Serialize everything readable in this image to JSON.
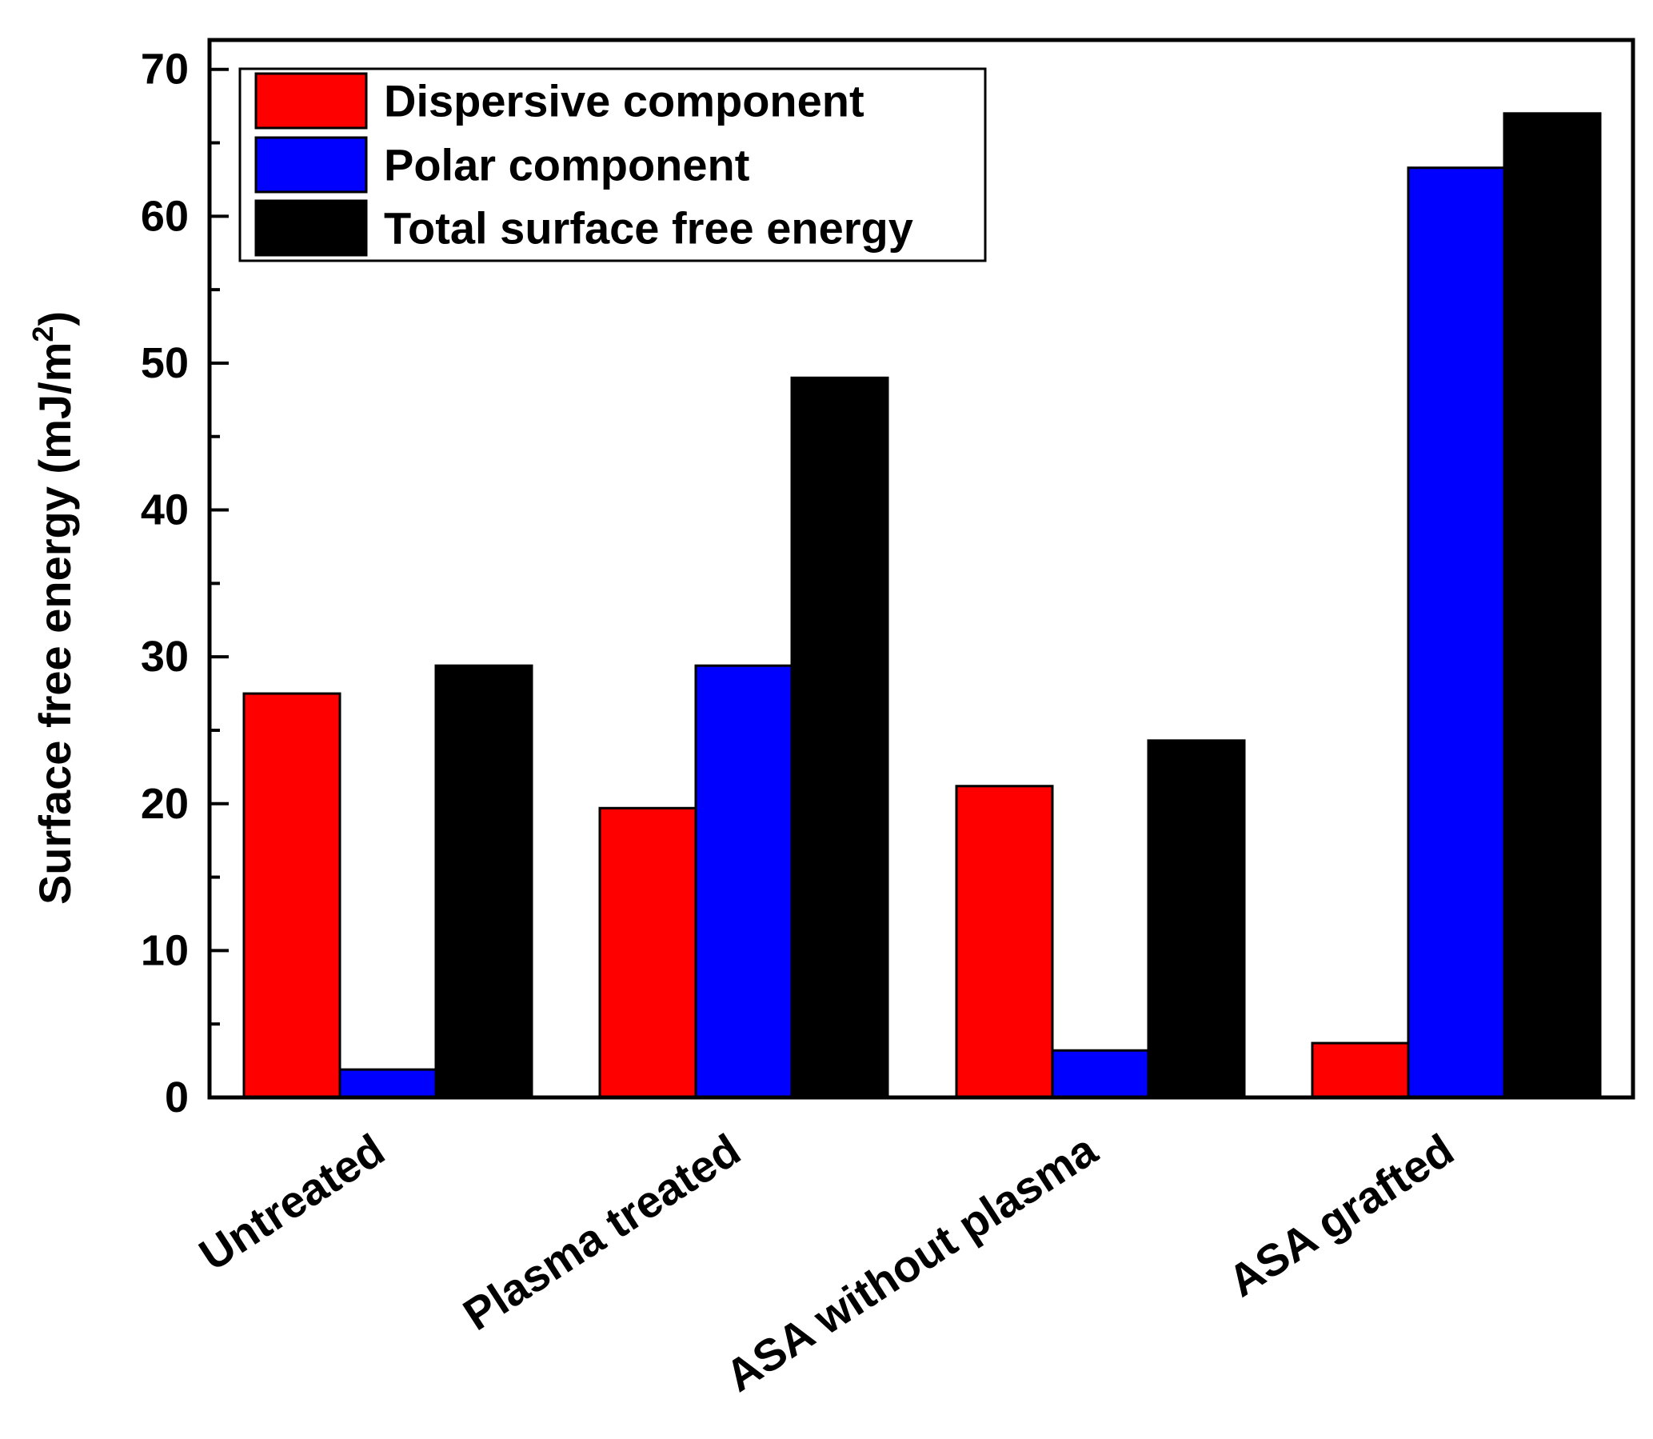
{
  "chart_data": {
    "type": "bar",
    "title": "",
    "xlabel": "",
    "ylabel": "Surface free energy (mJ/m",
    "ylabel_superscript": "2",
    "ylabel_close": ")",
    "ylim": [
      0,
      72
    ],
    "yticks": [
      0,
      10,
      20,
      30,
      40,
      50,
      60,
      70
    ],
    "ytick_labels": [
      "0",
      "10",
      "20",
      "30",
      "40",
      "50",
      "60",
      "70"
    ],
    "minor_yticks": [
      5,
      15,
      25,
      35,
      45,
      55,
      65
    ],
    "categories": [
      "Untreated",
      "Plasma treated",
      "ASA without plasma",
      "ASA grafted"
    ],
    "series": [
      {
        "name": "Dispersive component",
        "color": "#ff0000",
        "values": [
          27.5,
          19.7,
          21.2,
          3.7
        ]
      },
      {
        "name": "Polar component",
        "color": "#0000ff",
        "values": [
          1.9,
          29.4,
          3.2,
          63.3
        ]
      },
      {
        "name": "Total surface free energy",
        "color": "#000000",
        "values": [
          29.4,
          49.0,
          24.3,
          67.0
        ]
      }
    ],
    "legend_position": "top-left",
    "grid": false
  }
}
